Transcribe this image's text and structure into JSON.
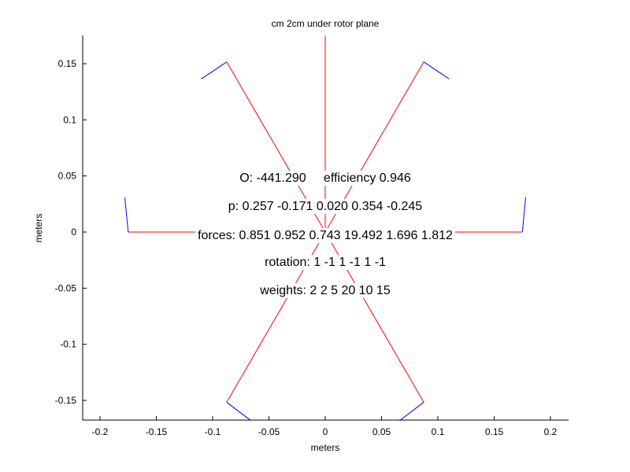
{
  "chart_data": {
    "type": "line",
    "title": "cm 2cm under rotor plane",
    "xlabel": "meters",
    "ylabel": "meters",
    "xlim": [
      -0.21,
      0.21
    ],
    "ylim": [
      -0.168,
      0.175
    ],
    "xticks": [
      -0.2,
      -0.15,
      -0.1,
      -0.05,
      0,
      0.05,
      0.1,
      0.15,
      0.2
    ],
    "xtick_labels": [
      "-0.2",
      "-0.15",
      "-0.1",
      "-0.05",
      "0",
      "0.05",
      "0.1",
      "0.15",
      "0.2"
    ],
    "yticks": [
      0.15,
      0.1,
      0.05,
      0,
      -0.05,
      -0.1,
      -0.15
    ],
    "ytick_labels": [
      "0.15",
      "0.1",
      "0.05",
      "0",
      "-0.05",
      "-0.1",
      "-0.15"
    ],
    "grid": false,
    "series": [
      {
        "color": "#ff0000",
        "x": [
          0.0,
          0.0
        ],
        "y": [
          0.0,
          0.175
        ]
      },
      {
        "color": "#ff0000",
        "x": [
          0.0,
          0.0875
        ],
        "y": [
          0.0,
          0.1516
        ]
      },
      {
        "color": "#0000ff",
        "x": [
          0.0875,
          0.11
        ],
        "y": [
          0.1516,
          0.1365
        ]
      },
      {
        "color": "#ff0000",
        "x": [
          0.0,
          -0.0875
        ],
        "y": [
          0.0,
          0.1516
        ]
      },
      {
        "color": "#0000ff",
        "x": [
          -0.0875,
          -0.11
        ],
        "y": [
          0.1516,
          0.1365
        ]
      },
      {
        "color": "#ff0000",
        "x": [
          0.0,
          0.175
        ],
        "y": [
          0.0,
          0.0
        ]
      },
      {
        "color": "#0000ff",
        "x": [
          0.175,
          0.178
        ],
        "y": [
          0.0,
          0.031
        ]
      },
      {
        "color": "#ff0000",
        "x": [
          0.0,
          -0.175
        ],
        "y": [
          0.0,
          0.0
        ]
      },
      {
        "color": "#0000ff",
        "x": [
          -0.175,
          -0.178
        ],
        "y": [
          0.0,
          0.031
        ]
      },
      {
        "color": "#ff0000",
        "x": [
          0.0,
          0.0875
        ],
        "y": [
          0.0,
          -0.1516
        ]
      },
      {
        "color": "#0000ff",
        "x": [
          0.0875,
          0.066
        ],
        "y": [
          -0.1516,
          -0.168
        ]
      },
      {
        "color": "#ff0000",
        "x": [
          0.0,
          -0.0875
        ],
        "y": [
          0.0,
          -0.1516
        ]
      },
      {
        "color": "#0000ff",
        "x": [
          -0.0875,
          -0.066
        ],
        "y": [
          -0.1516,
          -0.168
        ]
      }
    ],
    "annotations": [
      {
        "text": "O: -441.290     efficiency 0.946",
        "x": 0.0,
        "y": 0.049
      },
      {
        "text": "p: 0.257 -0.171 0.020 0.354 -0.245",
        "x": 0.0,
        "y": 0.024
      },
      {
        "text": "forces: 0.851 0.952 0.743 19.492 1.696 1.812",
        "x": 0.0,
        "y": -0.002
      },
      {
        "text": "rotation: 1 -1 1 -1 1 -1",
        "x": 0.0,
        "y": -0.026
      },
      {
        "text": "weights: 2 2 5 20 10 15",
        "x": 0.0,
        "y": -0.051
      }
    ]
  }
}
